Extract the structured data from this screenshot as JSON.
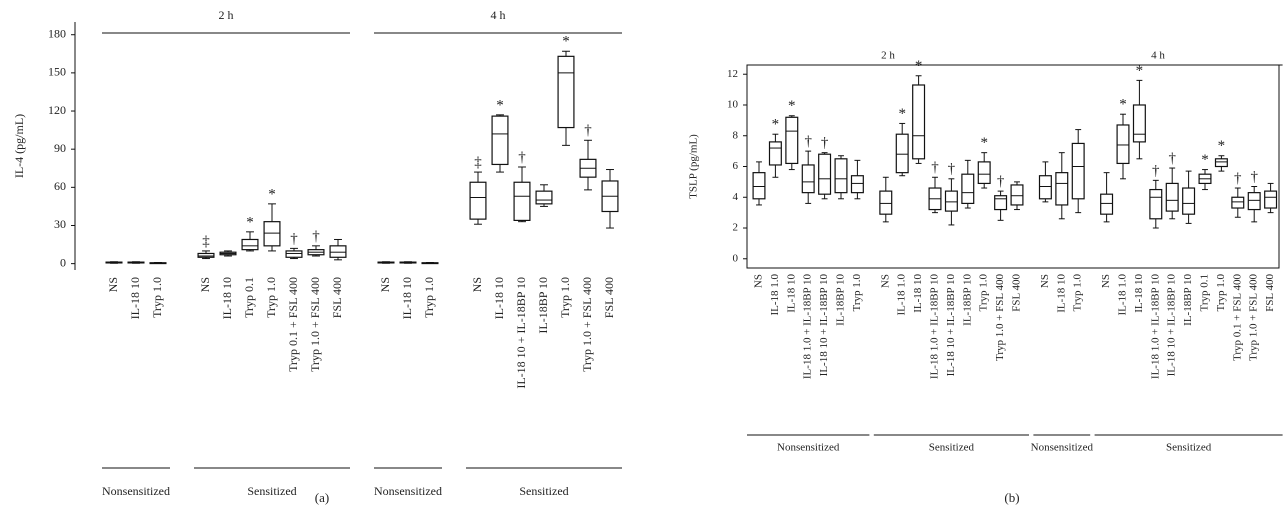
{
  "chart_data": [
    {
      "type": "box",
      "panel_label": "(a)",
      "ylabel": "IL-4 (pg/mL)",
      "ylim": [
        -5,
        190
      ],
      "yticks": [
        0,
        30,
        60,
        90,
        120,
        150,
        180
      ],
      "frame": false,
      "groups": [
        {
          "label": "2 h",
          "subgroups": [
            {
              "label": "Nonsensitized",
              "categories": [
                "NS",
                "IL-18 10",
                "Tryp 1.0"
              ],
              "min": [
                0.3,
                0.3,
                0.1
              ],
              "q1": [
                0.6,
                0.6,
                0.3
              ],
              "median": [
                0.9,
                0.9,
                0.5
              ],
              "q3": [
                1.2,
                1.2,
                0.7
              ],
              "max": [
                1.5,
                1.5,
                0.9
              ],
              "markers": [
                null,
                null,
                null
              ]
            },
            {
              "label": "Sensitized",
              "categories": [
                "NS",
                "IL-18 10",
                "Tryp 0.1",
                "Tryp 1.0",
                "Tryp 0.1 + FSL 400",
                "Tryp 1.0 + FSL 400",
                "FSL 400"
              ],
              "min": [
                4,
                6,
                10,
                10,
                4,
                6,
                3
              ],
              "q1": [
                5,
                7,
                11,
                14,
                5,
                7,
                5
              ],
              "median": [
                6,
                8,
                14,
                24,
                8,
                9,
                9
              ],
              "q3": [
                8,
                9,
                19,
                33,
                10,
                11,
                14
              ],
              "max": [
                10,
                10,
                25,
                47,
                12,
                14,
                19
              ],
              "markers": [
                "‡",
                null,
                "*",
                "*",
                "†",
                "†",
                null
              ]
            }
          ]
        },
        {
          "label": "4 h",
          "subgroups": [
            {
              "label": "Nonsensitized",
              "categories": [
                "NS",
                "IL-18 10",
                "Tryp 1.0"
              ],
              "min": [
                0.3,
                0.3,
                0.1
              ],
              "q1": [
                0.6,
                0.6,
                0.3
              ],
              "median": [
                0.9,
                0.9,
                0.5
              ],
              "q3": [
                1.2,
                1.2,
                0.7
              ],
              "max": [
                1.5,
                1.5,
                0.9
              ],
              "markers": [
                null,
                null,
                null
              ]
            },
            {
              "label": "Sensitized",
              "categories": [
                "NS",
                "IL-18 10",
                "IL-18 10 + IL-18BP 10",
                "IL-18BP 10",
                "Tryp 1.0",
                "Tryp 1.0 + FSL 400",
                "FSL 400"
              ],
              "min": [
                31,
                72,
                33,
                45,
                93,
                58,
                28
              ],
              "q1": [
                35,
                78,
                34,
                47,
                107,
                68,
                41
              ],
              "median": [
                52,
                102,
                53,
                50,
                150,
                75,
                53
              ],
              "q3": [
                64,
                116,
                64,
                57,
                163,
                82,
                65
              ],
              "max": [
                72,
                117,
                76,
                62,
                167,
                97,
                74
              ],
              "markers": [
                "‡",
                "*",
                "†",
                null,
                "*",
                "†",
                null
              ]
            }
          ]
        }
      ]
    },
    {
      "type": "box",
      "panel_label": "(b)",
      "ylabel": "TSLP (pg/mL)",
      "ylim": [
        -0.6,
        12.6
      ],
      "yticks": [
        0,
        2,
        4,
        6,
        8,
        10,
        12
      ],
      "frame": true,
      "groups": [
        {
          "label": "2 h",
          "subgroups": [
            {
              "label": "Nonsensitized",
              "categories": [
                "NS",
                "IL-18 1.0",
                "IL-18 10",
                "IL-18 1.0 + IL-18BP 10",
                "IL-18 10 + IL-18BP 10",
                "IL-18BP 10",
                "Tryp 1.0"
              ],
              "min": [
                3.5,
                5.3,
                5.8,
                3.6,
                3.9,
                3.9,
                3.9
              ],
              "q1": [
                3.9,
                6.1,
                6.2,
                4.3,
                4.2,
                4.3,
                4.3
              ],
              "median": [
                4.7,
                7.2,
                8.3,
                5.0,
                5.2,
                5.2,
                4.9
              ],
              "q3": [
                5.6,
                7.6,
                9.2,
                6.1,
                6.8,
                6.5,
                5.4
              ],
              "max": [
                6.3,
                8.1,
                9.3,
                7.0,
                6.9,
                6.7,
                6.4
              ],
              "markers": [
                null,
                "*",
                "*",
                "†",
                "†",
                null,
                null
              ]
            },
            {
              "label": "Sensitized",
              "categories": [
                "NS",
                "IL-18 1.0",
                "IL-18 10",
                "IL-18 1.0 + IL-18BP 10",
                "IL-18 10 + IL-18BP 10",
                "IL-18BP 10",
                "Tryp 1.0",
                "Tryp 1.0 + FSL 400",
                "FSL 400"
              ],
              "min": [
                2.4,
                5.4,
                6.2,
                3.0,
                2.2,
                3.3,
                4.6,
                2.5,
                3.2
              ],
              "q1": [
                2.9,
                5.6,
                6.5,
                3.2,
                3.1,
                3.6,
                4.9,
                3.2,
                3.5
              ],
              "median": [
                3.6,
                6.8,
                8.0,
                3.9,
                3.7,
                4.3,
                5.5,
                3.9,
                4.1
              ],
              "q3": [
                4.4,
                8.1,
                11.3,
                4.6,
                4.4,
                5.5,
                6.3,
                4.1,
                4.8
              ],
              "max": [
                5.3,
                8.8,
                11.9,
                5.3,
                5.2,
                6.4,
                6.9,
                4.4,
                5.0
              ],
              "markers": [
                null,
                "*",
                "*",
                "†",
                "†",
                null,
                "*",
                "†",
                null
              ]
            }
          ]
        },
        {
          "label": "4 h",
          "subgroups": [
            {
              "label": "Nonsensitized",
              "categories": [
                "NS",
                "IL-18 10",
                "Tryp 1.0"
              ],
              "min": [
                3.7,
                2.6,
                3.0
              ],
              "q1": [
                3.9,
                3.5,
                3.9
              ],
              "median": [
                4.7,
                4.9,
                6.0
              ],
              "q3": [
                5.4,
                5.6,
                7.5
              ],
              "max": [
                6.3,
                6.9,
                8.4
              ],
              "markers": [
                null,
                null,
                null
              ]
            },
            {
              "label": "Sensitized",
              "categories": [
                "NS",
                "IL-18 1.0",
                "IL-18 10",
                "IL-18 1.0 + IL-18BP 10",
                "IL-18 10 + IL-18BP 10",
                "IL-18BP 10",
                "Tryp 0.1",
                "Tryp 1.0",
                "Tryp 0.1 + FSL 400",
                "Tryp 1.0 + FSL 400",
                "FSL 400"
              ],
              "min": [
                2.4,
                5.2,
                6.5,
                2.0,
                2.6,
                2.3,
                4.5,
                5.7,
                2.7,
                2.4,
                3.0
              ],
              "q1": [
                2.9,
                6.2,
                7.6,
                2.6,
                3.1,
                2.9,
                4.9,
                6.0,
                3.3,
                3.2,
                3.3
              ],
              "median": [
                3.6,
                7.4,
                8.1,
                4.0,
                3.8,
                3.6,
                5.2,
                6.3,
                3.7,
                3.8,
                4.0
              ],
              "q3": [
                4.2,
                8.7,
                10.0,
                4.5,
                4.9,
                4.6,
                5.5,
                6.5,
                4.0,
                4.3,
                4.4
              ],
              "max": [
                5.6,
                9.4,
                11.6,
                5.1,
                5.9,
                5.7,
                5.8,
                6.7,
                4.6,
                4.7,
                4.9
              ],
              "markers": [
                null,
                "*",
                "*",
                "†",
                "†",
                null,
                "*",
                "*",
                "†",
                "†",
                null
              ]
            }
          ]
        }
      ]
    }
  ]
}
